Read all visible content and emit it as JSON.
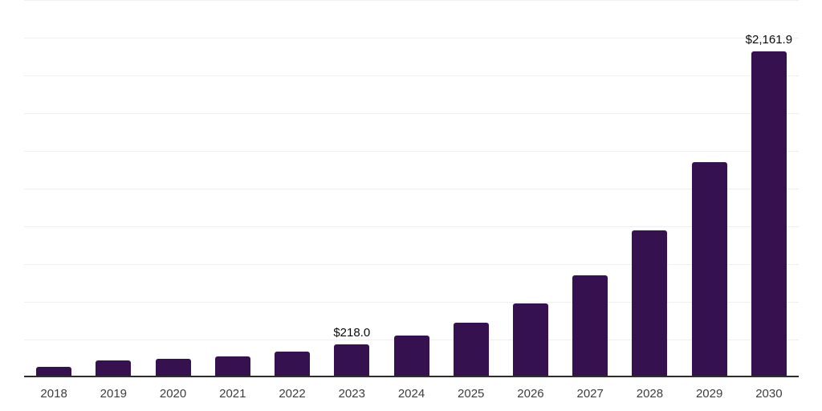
{
  "chart_data": {
    "type": "bar",
    "title": "",
    "xlabel": "",
    "ylabel": "",
    "categories": [
      "2018",
      "2019",
      "2020",
      "2021",
      "2022",
      "2023",
      "2024",
      "2025",
      "2026",
      "2027",
      "2028",
      "2029",
      "2030"
    ],
    "values": [
      69,
      112,
      122,
      138,
      170,
      218.0,
      277,
      362,
      489,
      676,
      973,
      1426,
      2161.9
    ],
    "data_labels": [
      "",
      "",
      "",
      "",
      "",
      "$218.0",
      "",
      "",
      "",
      "",
      "",
      "",
      "$2,161.9"
    ],
    "ylim": [
      0,
      2500
    ],
    "ytick_step": 250,
    "y_axis_tick_labels_visible": false,
    "grid": "horizontal",
    "legend": "none",
    "colors": {
      "bar": "#351150",
      "gridline": "#efefef",
      "axis_line": "#2d2d2d",
      "x_tick_label": "#3d3d3d",
      "data_label": "#0a0a0a",
      "background": "#ffffff"
    }
  }
}
